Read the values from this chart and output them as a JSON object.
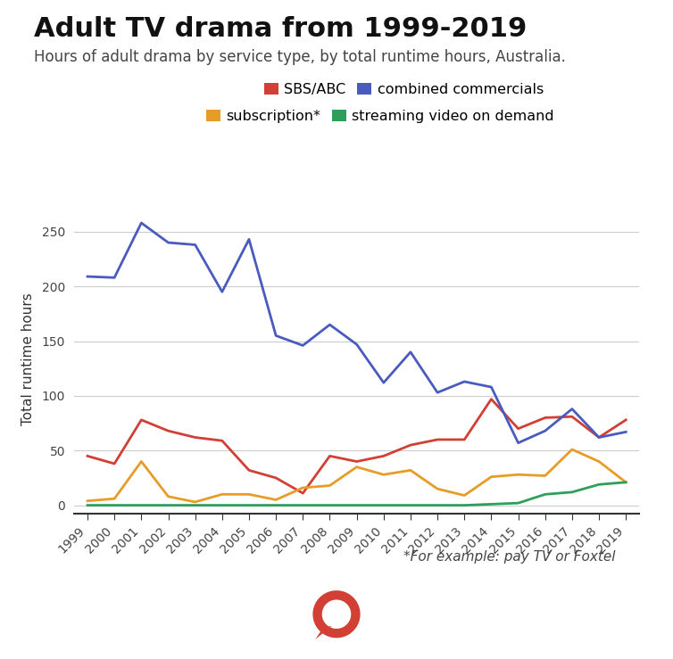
{
  "title": "Adult TV drama from 1999-2019",
  "subtitle": "Hours of adult drama by service type, by total runtime hours, Australia.",
  "footnote": "*For example: pay TV or Foxtel",
  "ylabel": "Total runtime hours",
  "years": [
    1999,
    2000,
    2001,
    2002,
    2003,
    2004,
    2005,
    2006,
    2007,
    2008,
    2009,
    2010,
    2011,
    2012,
    2013,
    2014,
    2015,
    2016,
    2017,
    2018,
    2019
  ],
  "sbs_abc": [
    45,
    38,
    78,
    68,
    62,
    59,
    32,
    25,
    11,
    45,
    40,
    45,
    55,
    60,
    60,
    97,
    70,
    80,
    81,
    62,
    78
  ],
  "combined_commercials": [
    209,
    208,
    258,
    240,
    238,
    195,
    243,
    155,
    146,
    165,
    147,
    112,
    140,
    103,
    113,
    108,
    57,
    68,
    88,
    62,
    67
  ],
  "subscription": [
    4,
    6,
    40,
    8,
    3,
    10,
    10,
    5,
    16,
    18,
    35,
    28,
    32,
    15,
    9,
    26,
    28,
    27,
    51,
    40,
    21
  ],
  "streaming": [
    0,
    0,
    0,
    0,
    0,
    0,
    0,
    0,
    0,
    0,
    0,
    0,
    0,
    0,
    0,
    1,
    2,
    10,
    12,
    19,
    21
  ],
  "colors": {
    "sbs_abc": "#d13f35",
    "combined_commercials": "#4a5bbf",
    "subscription": "#e89c28",
    "streaming": "#2e9e5b"
  },
  "legend_labels": [
    "SBS/ABC",
    "combined commercials",
    "subscription*",
    "streaming video on demand"
  ],
  "ylim": [
    -8,
    275
  ],
  "background_color": "#ffffff",
  "grid_color": "#cccccc",
  "title_fontsize": 22,
  "subtitle_fontsize": 12,
  "axis_fontsize": 11,
  "tick_fontsize": 10,
  "line_width": 2.0
}
